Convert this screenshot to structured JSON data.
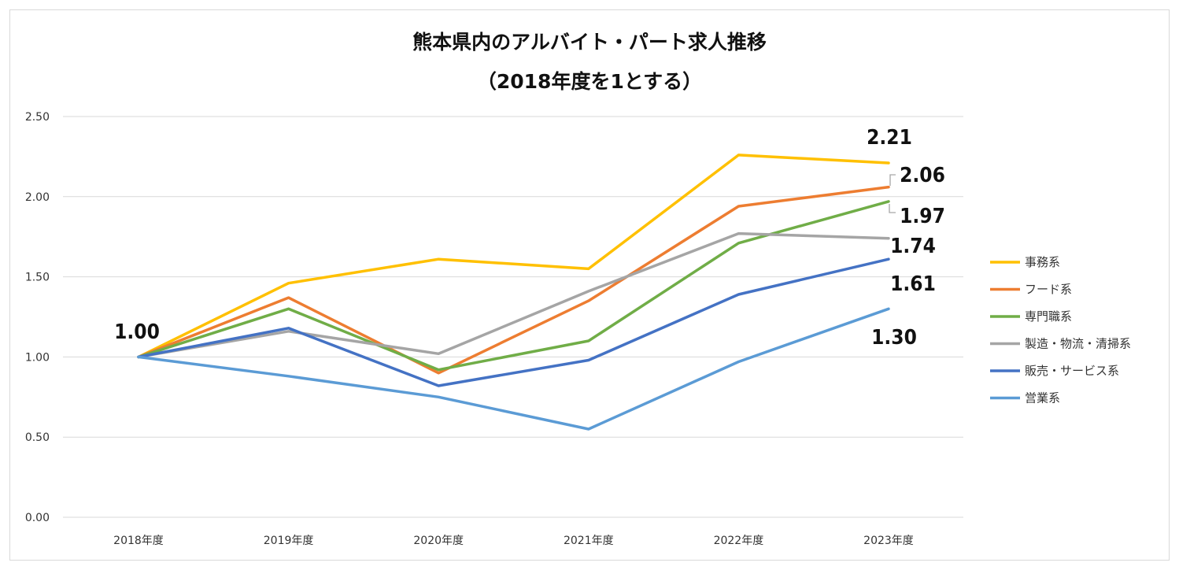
{
  "chart_data": {
    "type": "line",
    "title": "熊本県内のアルバイト・パート求人推移",
    "subtitle": "（2018年度を1とする）",
    "xlabel": "",
    "ylabel": "",
    "ylim": [
      0,
      2.5
    ],
    "yticks": [
      "0.00",
      "0.50",
      "1.00",
      "1.50",
      "2.00",
      "2.50"
    ],
    "categories": [
      "2018年度",
      "2019年度",
      "2020年度",
      "2021年度",
      "2022年度",
      "2023年度"
    ],
    "series": [
      {
        "name": "事務系",
        "color": "#FFC000",
        "values": [
          1.0,
          1.46,
          1.61,
          1.55,
          2.26,
          2.21
        ]
      },
      {
        "name": "フード系",
        "color": "#ED7D31",
        "values": [
          1.0,
          1.37,
          0.9,
          1.35,
          1.94,
          2.06
        ]
      },
      {
        "name": "専門職系",
        "color": "#70AD47",
        "values": [
          1.0,
          1.3,
          0.92,
          1.1,
          1.71,
          1.97
        ]
      },
      {
        "name": "製造・物流・清掃系",
        "color": "#A5A5A5",
        "values": [
          1.0,
          1.16,
          1.02,
          1.41,
          1.77,
          1.74
        ]
      },
      {
        "name": "販売・サービス系",
        "color": "#4472C4",
        "values": [
          1.0,
          1.18,
          0.82,
          0.98,
          1.39,
          1.61
        ]
      },
      {
        "name": "営業系",
        "color": "#5B9BD5",
        "values": [
          1.0,
          0.88,
          0.75,
          0.55,
          0.97,
          1.3
        ]
      }
    ],
    "start_label": "1.00",
    "end_labels": [
      "2.21",
      "2.06",
      "1.97",
      "1.74",
      "1.61",
      "1.30"
    ],
    "legend_position": "right",
    "grid": true
  }
}
